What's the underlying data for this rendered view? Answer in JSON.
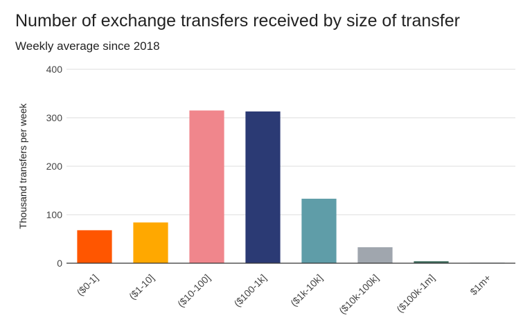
{
  "chart_data": {
    "type": "bar",
    "title": "Number of exchange transfers received by size of transfer",
    "subtitle": "Weekly average since 2018",
    "xlabel": "",
    "ylabel": "Thousand transfers per week",
    "ylim": [
      0,
      400
    ],
    "yticks": [
      0,
      100,
      200,
      300,
      400
    ],
    "grid": true,
    "legend": "none",
    "categories": [
      "($0-1]",
      "($1-10]",
      "($10-100]",
      "($100-1k]",
      "($1k-10k]",
      "($10k-100k]",
      "($100k-1m]",
      "$1m+"
    ],
    "values": [
      68,
      84,
      315,
      313,
      133,
      33,
      4,
      1
    ],
    "colors": [
      "#ff5600",
      "#ffa800",
      "#f0868c",
      "#2b3a74",
      "#5f9da8",
      "#a0a6ae",
      "#3f6e5e",
      "#c9ccd0"
    ]
  }
}
